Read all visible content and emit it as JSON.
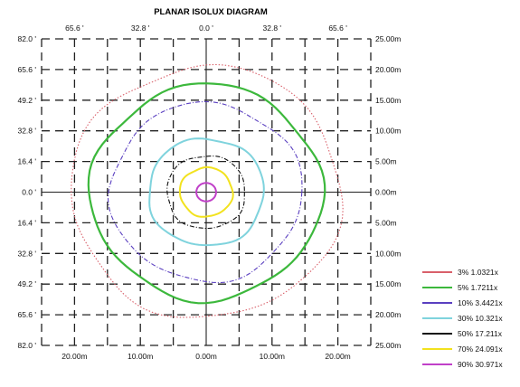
{
  "chart_data": {
    "type": "contour",
    "title": "PLANAR ISOLUX DIAGRAM",
    "top_ticks": [
      "65.6 '",
      "32.8 '",
      "0.0 '",
      "32.8 '",
      "65.6 '"
    ],
    "left_ticks": [
      "82.0 '",
      "65.6 '",
      "49.2 '",
      "32.8 '",
      "16.4 '",
      "0.0 '",
      "16.4 '",
      "32.8 '",
      "49.2 '",
      "65.6 '",
      "82.0 '"
    ],
    "right_ticks": [
      "25.00m",
      "20.00m",
      "15.00m",
      "10.00m",
      "5.00m",
      "0.00m",
      "5.00m",
      "10.00m",
      "15.00m",
      "20.00m",
      "25.00m"
    ],
    "bottom_ticks": [
      "20.00m",
      "10.00m",
      "0.00m",
      "10.00m",
      "20.00m"
    ],
    "x_range_m": [
      -25,
      25
    ],
    "y_range_m": [
      -25,
      25
    ],
    "grid": true,
    "legend_position": "bottom-right",
    "series": [
      {
        "percent": "3%",
        "lux": "1.0321x",
        "color": "#d9606a",
        "style": "dotted",
        "radius_m": 20.5
      },
      {
        "percent": "5%",
        "lux": "1.7211x",
        "color": "#3cb83c",
        "style": "solid",
        "radius_m": 17.5
      },
      {
        "percent": "10%",
        "lux": "3.4421x",
        "color": "#5a3fc0",
        "style": "dashdot",
        "radius_m": 14.5
      },
      {
        "percent": "30%",
        "lux": "10.321x",
        "color": "#7fd3dd",
        "style": "solid",
        "radius_m": 8.8
      },
      {
        "percent": "50%",
        "lux": "17.211x",
        "color": "#111111",
        "style": "dashdot",
        "radius_m": 6.0
      },
      {
        "percent": "70%",
        "lux": "24.091x",
        "color": "#f2e21e",
        "style": "solid",
        "radius_m": 4.0
      },
      {
        "percent": "90%",
        "lux": "30.971x",
        "color": "#c040c8",
        "style": "solid",
        "radius_m": 1.5
      }
    ]
  }
}
